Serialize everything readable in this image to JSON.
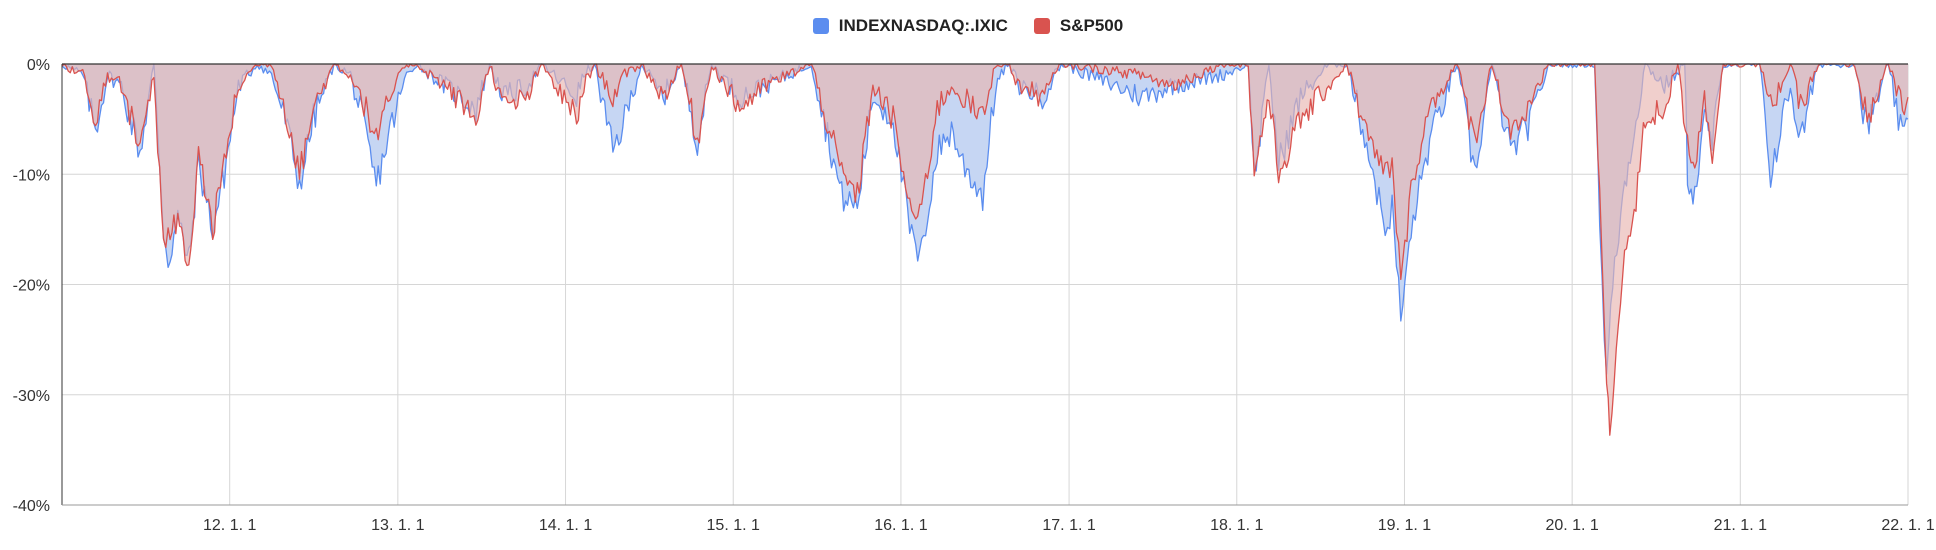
{
  "chart_data": {
    "type": "area",
    "legend_position": "top-center",
    "grid": true,
    "x_ticks": [
      "12. 1. 1",
      "13. 1. 1",
      "14. 1. 1",
      "15. 1. 1",
      "16. 1. 1",
      "17. 1. 1",
      "18. 1. 1",
      "19. 1. 1",
      "20. 1. 1",
      "21. 1. 1",
      "22. 1. 1"
    ],
    "x_range": [
      "2011-01-01",
      "2022-01-01"
    ],
    "y_ticks": [
      "0%",
      "-10%",
      "-20%",
      "-30%",
      "-40%"
    ],
    "ylim": [
      -40,
      0
    ],
    "series": [
      {
        "name": "INDEXNASDAQ:.IXIC",
        "color": "#5b8def",
        "fill": "#c6d6f3",
        "points": [
          [
            "2011-01-01",
            0
          ],
          [
            "2011-02-15",
            -1
          ],
          [
            "2011-03-15",
            -6
          ],
          [
            "2011-04-10",
            -1
          ],
          [
            "2011-05-10",
            -2
          ],
          [
            "2011-06-20",
            -8
          ],
          [
            "2011-07-20",
            0
          ],
          [
            "2011-08-10",
            -15
          ],
          [
            "2011-08-20",
            -18
          ],
          [
            "2011-09-10",
            -14
          ],
          [
            "2011-10-04",
            -18
          ],
          [
            "2011-10-25",
            -9
          ],
          [
            "2011-11-25",
            -15
          ],
          [
            "2011-12-20",
            -10
          ],
          [
            "2012-01-20",
            -2
          ],
          [
            "2012-03-01",
            0
          ],
          [
            "2012-04-01",
            -1
          ],
          [
            "2012-05-01",
            -5
          ],
          [
            "2012-06-01",
            -11
          ],
          [
            "2012-07-01",
            -5
          ],
          [
            "2012-08-15",
            0
          ],
          [
            "2012-09-20",
            -1
          ],
          [
            "2012-10-15",
            -5
          ],
          [
            "2012-11-15",
            -11
          ],
          [
            "2012-12-15",
            -6
          ],
          [
            "2013-01-20",
            -1
          ],
          [
            "2013-02-10",
            0
          ],
          [
            "2013-04-15",
            -2
          ],
          [
            "2013-06-20",
            -4
          ],
          [
            "2013-07-20",
            0
          ],
          [
            "2013-08-20",
            -3
          ],
          [
            "2013-10-10",
            -2
          ],
          [
            "2013-11-10",
            0
          ],
          [
            "2014-01-25",
            -3
          ],
          [
            "2014-02-10",
            -1
          ],
          [
            "2014-03-05",
            0
          ],
          [
            "2014-04-14",
            -8
          ],
          [
            "2014-05-10",
            -5
          ],
          [
            "2014-06-15",
            0
          ],
          [
            "2014-08-01",
            -3
          ],
          [
            "2014-09-10",
            0
          ],
          [
            "2014-10-15",
            -7
          ],
          [
            "2014-11-15",
            0
          ],
          [
            "2015-01-15",
            -3
          ],
          [
            "2015-03-10",
            -2
          ],
          [
            "2015-06-20",
            0
          ],
          [
            "2015-08-25",
            -12
          ],
          [
            "2015-09-28",
            -13
          ],
          [
            "2015-11-01",
            -3
          ],
          [
            "2015-12-15",
            -5
          ],
          [
            "2016-01-20",
            -15
          ],
          [
            "2016-02-11",
            -18
          ],
          [
            "2016-03-20",
            -8
          ],
          [
            "2016-04-20",
            -6
          ],
          [
            "2016-05-15",
            -9
          ],
          [
            "2016-06-27",
            -12
          ],
          [
            "2016-07-25",
            -2
          ],
          [
            "2016-08-20",
            0
          ],
          [
            "2016-09-15",
            -2
          ],
          [
            "2016-11-04",
            -3
          ],
          [
            "2016-12-15",
            0
          ],
          [
            "2017-06-10",
            -3
          ],
          [
            "2017-08-10",
            -2
          ],
          [
            "2017-11-30",
            -1
          ],
          [
            "2018-01-26",
            0
          ],
          [
            "2018-02-08",
            -10
          ],
          [
            "2018-03-01",
            -4
          ],
          [
            "2018-03-12",
            0
          ],
          [
            "2018-04-02",
            -9
          ],
          [
            "2018-05-20",
            -3
          ],
          [
            "2018-07-20",
            0
          ],
          [
            "2018-08-29",
            0
          ],
          [
            "2018-10-15",
            -8
          ],
          [
            "2018-11-20",
            -15
          ],
          [
            "2018-12-05",
            -13
          ],
          [
            "2018-12-24",
            -23
          ],
          [
            "2019-01-20",
            -14
          ],
          [
            "2019-02-25",
            -7
          ],
          [
            "2019-04-25",
            0
          ],
          [
            "2019-06-03",
            -10
          ],
          [
            "2019-07-10",
            0
          ],
          [
            "2019-08-20",
            -8
          ],
          [
            "2019-10-05",
            -5
          ],
          [
            "2019-11-10",
            0
          ],
          [
            "2020-02-19",
            0
          ],
          [
            "2020-03-01",
            -14
          ],
          [
            "2020-03-16",
            -29
          ],
          [
            "2020-03-25",
            -22
          ],
          [
            "2020-04-20",
            -12
          ],
          [
            "2020-05-15",
            -6
          ],
          [
            "2020-06-08",
            0
          ],
          [
            "2020-07-20",
            -2
          ],
          [
            "2020-09-02",
            0
          ],
          [
            "2020-09-08",
            -10
          ],
          [
            "2020-09-24",
            -12
          ],
          [
            "2020-10-15",
            -5
          ],
          [
            "2020-11-01",
            -7
          ],
          [
            "2020-11-25",
            0
          ],
          [
            "2021-02-12",
            0
          ],
          [
            "2021-03-08",
            -10
          ],
          [
            "2021-04-20",
            -2
          ],
          [
            "2021-05-12",
            -7
          ],
          [
            "2021-06-20",
            0
          ],
          [
            "2021-09-07",
            0
          ],
          [
            "2021-10-04",
            -6
          ],
          [
            "2021-11-19",
            0
          ],
          [
            "2021-12-20",
            -7
          ],
          [
            "2022-01-01",
            -5
          ]
        ]
      },
      {
        "name": "S&P500",
        "color": "#d9534f",
        "fill": "#e8b5b0",
        "points": [
          [
            "2011-01-01",
            0
          ],
          [
            "2011-02-15",
            -1
          ],
          [
            "2011-03-15",
            -5
          ],
          [
            "2011-04-10",
            -1
          ],
          [
            "2011-05-10",
            -2
          ],
          [
            "2011-06-20",
            -7
          ],
          [
            "2011-07-20",
            -1
          ],
          [
            "2011-08-10",
            -17
          ],
          [
            "2011-08-20",
            -16
          ],
          [
            "2011-09-10",
            -14
          ],
          [
            "2011-10-04",
            -19
          ],
          [
            "2011-10-25",
            -8
          ],
          [
            "2011-11-25",
            -15
          ],
          [
            "2011-12-20",
            -9
          ],
          [
            "2012-01-20",
            -2
          ],
          [
            "2012-03-01",
            0
          ],
          [
            "2012-04-01",
            0
          ],
          [
            "2012-05-01",
            -4
          ],
          [
            "2012-06-01",
            -10
          ],
          [
            "2012-07-01",
            -4
          ],
          [
            "2012-08-15",
            0
          ],
          [
            "2012-09-20",
            -1
          ],
          [
            "2012-10-15",
            -3
          ],
          [
            "2012-11-15",
            -7
          ],
          [
            "2012-12-15",
            -3
          ],
          [
            "2013-01-20",
            0
          ],
          [
            "2013-02-10",
            0
          ],
          [
            "2013-04-15",
            -2
          ],
          [
            "2013-06-20",
            -5
          ],
          [
            "2013-07-20",
            0
          ],
          [
            "2013-08-20",
            -4
          ],
          [
            "2013-10-10",
            -3
          ],
          [
            "2013-11-10",
            0
          ],
          [
            "2014-01-25",
            -5
          ],
          [
            "2014-02-10",
            -2
          ],
          [
            "2014-03-05",
            0
          ],
          [
            "2014-04-14",
            -3
          ],
          [
            "2014-05-10",
            -1
          ],
          [
            "2014-06-15",
            0
          ],
          [
            "2014-08-01",
            -3
          ],
          [
            "2014-09-10",
            0
          ],
          [
            "2014-10-15",
            -7
          ],
          [
            "2014-11-15",
            0
          ],
          [
            "2015-01-15",
            -4
          ],
          [
            "2015-03-10",
            -2
          ],
          [
            "2015-06-20",
            0
          ],
          [
            "2015-08-25",
            -10
          ],
          [
            "2015-09-28",
            -12
          ],
          [
            "2015-11-01",
            -2
          ],
          [
            "2015-12-15",
            -5
          ],
          [
            "2016-01-20",
            -13
          ],
          [
            "2016-02-11",
            -14
          ],
          [
            "2016-03-20",
            -4
          ],
          [
            "2016-04-20",
            -2
          ],
          [
            "2016-05-15",
            -3
          ],
          [
            "2016-06-27",
            -5
          ],
          [
            "2016-07-25",
            0
          ],
          [
            "2016-08-20",
            0
          ],
          [
            "2016-09-15",
            -2
          ],
          [
            "2016-11-04",
            -3
          ],
          [
            "2016-12-15",
            0
          ],
          [
            "2017-06-10",
            -1
          ],
          [
            "2017-08-10",
            -2
          ],
          [
            "2017-11-30",
            0
          ],
          [
            "2018-01-26",
            0
          ],
          [
            "2018-02-08",
            -10
          ],
          [
            "2018-03-01",
            -5
          ],
          [
            "2018-03-12",
            -3
          ],
          [
            "2018-04-02",
            -10
          ],
          [
            "2018-05-20",
            -5
          ],
          [
            "2018-07-20",
            -2
          ],
          [
            "2018-08-29",
            0
          ],
          [
            "2018-10-15",
            -7
          ],
          [
            "2018-11-20",
            -10
          ],
          [
            "2018-12-05",
            -9
          ],
          [
            "2018-12-24",
            -20
          ],
          [
            "2019-01-20",
            -10
          ],
          [
            "2019-02-25",
            -4
          ],
          [
            "2019-04-25",
            0
          ],
          [
            "2019-06-03",
            -7
          ],
          [
            "2019-07-10",
            0
          ],
          [
            "2019-08-20",
            -6
          ],
          [
            "2019-10-05",
            -4
          ],
          [
            "2019-11-10",
            0
          ],
          [
            "2020-02-19",
            0
          ],
          [
            "2020-03-01",
            -12
          ],
          [
            "2020-03-16",
            -29
          ],
          [
            "2020-03-23",
            -34
          ],
          [
            "2020-04-20",
            -18
          ],
          [
            "2020-05-15",
            -14
          ],
          [
            "2020-06-08",
            -5
          ],
          [
            "2020-07-20",
            -4
          ],
          [
            "2020-08-18",
            0
          ],
          [
            "2020-09-08",
            -7
          ],
          [
            "2020-09-24",
            -9
          ],
          [
            "2020-10-15",
            -3
          ],
          [
            "2020-11-01",
            -8
          ],
          [
            "2020-11-25",
            0
          ],
          [
            "2021-02-12",
            0
          ],
          [
            "2021-03-08",
            -4
          ],
          [
            "2021-04-20",
            0
          ],
          [
            "2021-05-12",
            -4
          ],
          [
            "2021-06-20",
            0
          ],
          [
            "2021-09-07",
            0
          ],
          [
            "2021-10-04",
            -5
          ],
          [
            "2021-11-19",
            0
          ],
          [
            "2021-12-20",
            -4
          ],
          [
            "2022-01-01",
            -3
          ]
        ]
      }
    ]
  }
}
